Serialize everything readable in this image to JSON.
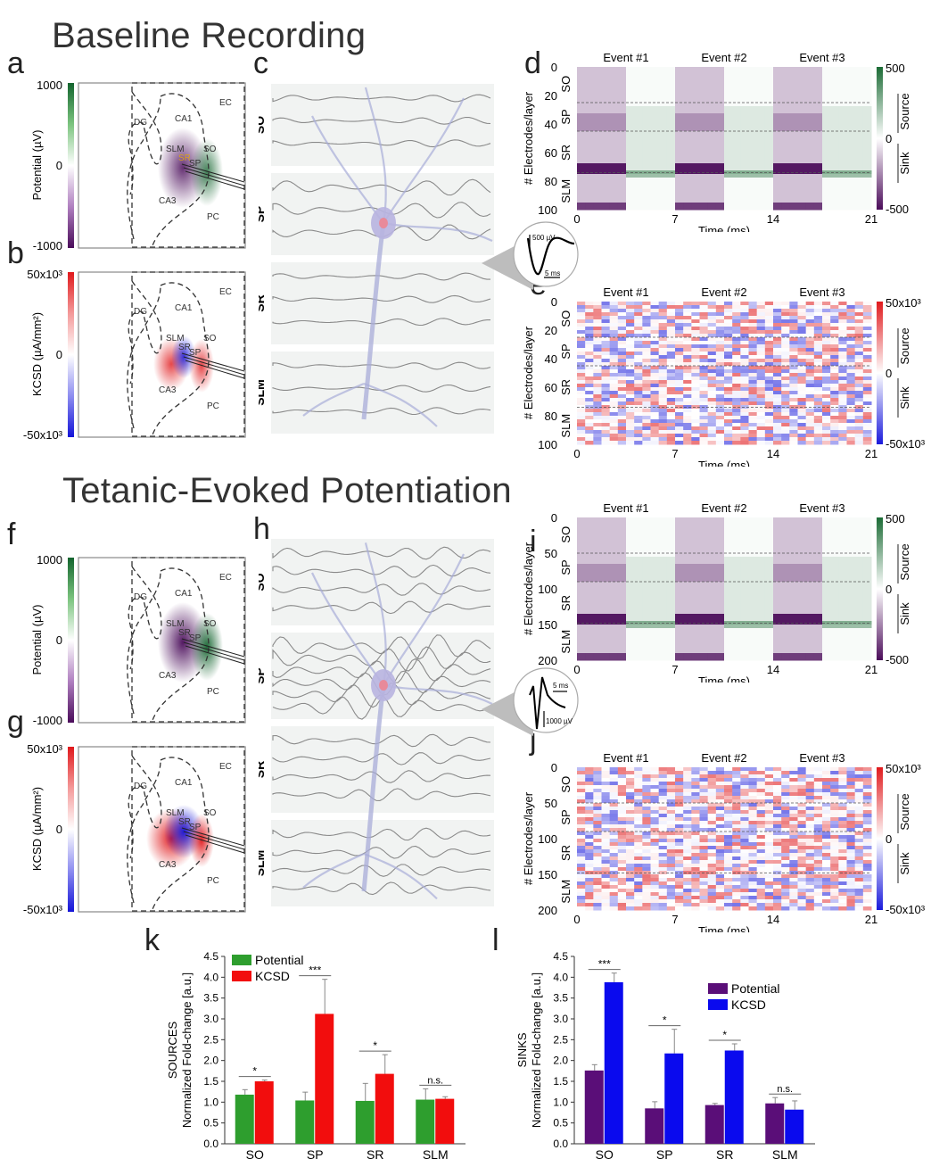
{
  "titles": {
    "baseline": "Baseline Recording",
    "tetanic": "Tetanic-Evoked Potentiation"
  },
  "panel_letters": [
    "a",
    "b",
    "c",
    "d",
    "e",
    "f",
    "g",
    "h",
    "i",
    "j",
    "k",
    "l"
  ],
  "maps": {
    "regions": [
      "EC",
      "DG",
      "CA1",
      "SLM",
      "SR",
      "SO",
      "SP",
      "CA3",
      "PC"
    ],
    "potential": {
      "axis_label": "Potential (µV)",
      "max": "1000",
      "mid": "0",
      "min": "-1000"
    },
    "kcsd": {
      "axis_label": "KCSD (µA/mm²)",
      "max": "50x10³",
      "mid": "0",
      "min": "-50x10³"
    }
  },
  "neuron": {
    "layers": [
      "SO",
      "SP",
      "SR",
      "SLM"
    ],
    "inset_baseline": {
      "amp": "500 µV",
      "time": "5 ms"
    },
    "inset_tetanic": {
      "amp": "1000 µV",
      "time": "5 ms"
    }
  },
  "heatmaps": {
    "events": [
      "Event #1",
      "Event #2",
      "Event #3"
    ],
    "x_ticks": [
      "0",
      "7",
      "14",
      "21"
    ],
    "x_label": "Time (ms)",
    "y_label": "# Electrodes/layer",
    "layers": [
      "SO",
      "SP",
      "SR",
      "SLM"
    ],
    "baseline_y_ticks": [
      "0",
      "20",
      "40",
      "60",
      "80",
      "100"
    ],
    "tetanic_y_ticks": [
      "0",
      "50",
      "100",
      "150",
      "200"
    ],
    "source_label": "Source",
    "sink_label": "Sink",
    "potential_scale": {
      "max": "500",
      "mid": "0",
      "min": "-500",
      "colors": {
        "pos": "#1b6b35",
        "neg": "#4b0c5a"
      }
    },
    "kcsd_scale": {
      "max": "50x10³",
      "mid": "0",
      "min": "-50x10³",
      "colors": {
        "pos": "#e0191c",
        "neg": "#1a1adb"
      }
    }
  },
  "chart_data": [
    {
      "type": "bar",
      "panel": "k",
      "title": "",
      "ylabel_line1": "SOURCES",
      "ylabel_line2": "Normalized Fold-change [a.u.]",
      "xlabel": "",
      "categories": [
        "SO",
        "SP",
        "SR",
        "SLM"
      ],
      "ylim": [
        0,
        4.5
      ],
      "yticks": [
        "0.0",
        "0.5",
        "1.0",
        "1.5",
        "2.0",
        "2.5",
        "3.0",
        "3.5",
        "4.0",
        "4.5"
      ],
      "legend_position": "top-left",
      "series": [
        {
          "name": "Potential",
          "color": "#2e9e2e",
          "values": [
            1.18,
            1.04,
            1.03,
            1.06
          ],
          "errors": [
            0.12,
            0.2,
            0.42,
            0.26
          ]
        },
        {
          "name": "KCSD",
          "color": "#f20d0d",
          "values": [
            1.5,
            3.12,
            1.68,
            1.08
          ],
          "errors": [
            0.03,
            0.83,
            0.46,
            0.05
          ]
        }
      ],
      "significance": [
        "*",
        "***",
        "*",
        "n.s."
      ]
    },
    {
      "type": "bar",
      "panel": "l",
      "title": "",
      "ylabel_line1": "SINKS",
      "ylabel_line2": "Normalized Fold-change [a.u.]",
      "xlabel": "",
      "categories": [
        "SO",
        "SP",
        "SR",
        "SLM"
      ],
      "ylim": [
        0,
        4.5
      ],
      "yticks": [
        "0.0",
        "0.5",
        "1.0",
        "1.5",
        "2.0",
        "2.5",
        "3.0",
        "3.5",
        "4.0",
        "4.5"
      ],
      "legend_position": "top-right",
      "series": [
        {
          "name": "Potential",
          "color": "#5a0e78",
          "values": [
            1.76,
            0.85,
            0.93,
            0.97
          ],
          "errors": [
            0.14,
            0.16,
            0.04,
            0.14
          ]
        },
        {
          "name": "KCSD",
          "color": "#0a0aee",
          "values": [
            3.88,
            2.17,
            2.24,
            0.82
          ],
          "errors": [
            0.22,
            0.58,
            0.16,
            0.21
          ]
        }
      ],
      "significance": [
        "***",
        "*",
        "*",
        "n.s."
      ]
    }
  ]
}
